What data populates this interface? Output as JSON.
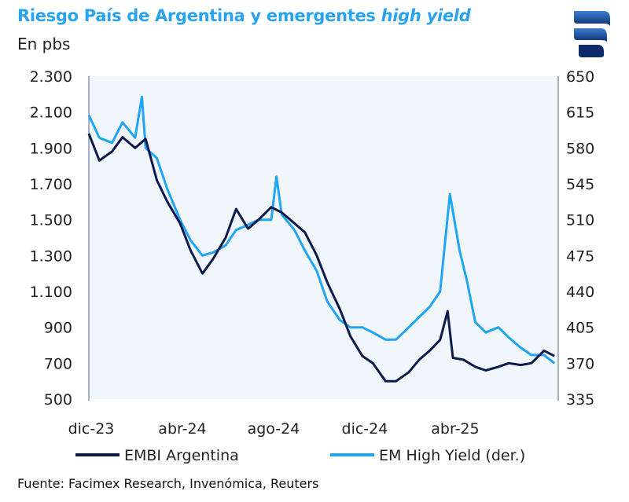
{
  "title_main": "Riesgo País de Argentina y emergentes ",
  "title_italic": "high yield",
  "subtitle": "En pbs",
  "source": "Fuente: Facimex Research, Invenómica, Reuters",
  "logo": "facimex-logo",
  "colors": {
    "embi": "#0d1a4d",
    "emhy": "#1ea6f4",
    "plot_bg": "#f0f6fc",
    "title": "#29a3ee"
  },
  "chart_data": {
    "type": "line",
    "title": "Riesgo País de Argentina y emergentes high yield",
    "ylabel": "En pbs",
    "ylim_left": [
      500,
      2300
    ],
    "ylim_right": [
      335,
      650
    ],
    "yticks_left": [
      "2.300",
      "2.100",
      "1.900",
      "1.700",
      "1.500",
      "1.300",
      "1.100",
      "900",
      "700",
      "500"
    ],
    "yticks_left_values": [
      2300,
      2100,
      1900,
      1700,
      1500,
      1300,
      1100,
      900,
      700,
      500
    ],
    "yticks_right": [
      "650",
      "615",
      "580",
      "545",
      "510",
      "475",
      "440",
      "405",
      "370",
      "335"
    ],
    "yticks_right_values": [
      650,
      615,
      580,
      545,
      510,
      475,
      440,
      405,
      370,
      335
    ],
    "xticks": [
      "dic-23",
      "abr-24",
      "ago-24",
      "dic-24",
      "abr-25"
    ],
    "xticks_values": [
      "2023-12-01",
      "2024-04-01",
      "2024-08-01",
      "2024-12-01",
      "2025-04-01"
    ],
    "xlim": [
      "2023-12-01",
      "2025-08-20"
    ],
    "grid": false,
    "legend": "bottom",
    "series": [
      {
        "name": "EMBI Argentina",
        "axis": "left",
        "points": [
          [
            "2023-12-01",
            1980
          ],
          [
            "2023-12-15",
            1830
          ],
          [
            "2024-01-01",
            1880
          ],
          [
            "2024-01-15",
            1960
          ],
          [
            "2024-02-01",
            1900
          ],
          [
            "2024-02-15",
            1950
          ],
          [
            "2024-03-01",
            1720
          ],
          [
            "2024-03-15",
            1600
          ],
          [
            "2024-04-01",
            1480
          ],
          [
            "2024-04-15",
            1330
          ],
          [
            "2024-05-01",
            1200
          ],
          [
            "2024-05-15",
            1280
          ],
          [
            "2024-06-01",
            1400
          ],
          [
            "2024-06-15",
            1560
          ],
          [
            "2024-07-01",
            1450
          ],
          [
            "2024-07-15",
            1500
          ],
          [
            "2024-08-01",
            1570
          ],
          [
            "2024-08-15",
            1540
          ],
          [
            "2024-09-01",
            1480
          ],
          [
            "2024-09-15",
            1430
          ],
          [
            "2024-10-01",
            1300
          ],
          [
            "2024-10-15",
            1150
          ],
          [
            "2024-11-01",
            1000
          ],
          [
            "2024-11-15",
            850
          ],
          [
            "2024-12-01",
            740
          ],
          [
            "2024-12-15",
            700
          ],
          [
            "2025-01-01",
            600
          ],
          [
            "2025-01-15",
            600
          ],
          [
            "2025-02-01",
            650
          ],
          [
            "2025-02-15",
            720
          ],
          [
            "2025-03-01",
            770
          ],
          [
            "2025-03-15",
            830
          ],
          [
            "2025-03-25",
            990
          ],
          [
            "2025-04-01",
            730
          ],
          [
            "2025-04-15",
            720
          ],
          [
            "2025-05-01",
            680
          ],
          [
            "2025-05-15",
            660
          ],
          [
            "2025-06-01",
            680
          ],
          [
            "2025-06-15",
            700
          ],
          [
            "2025-07-01",
            690
          ],
          [
            "2025-07-15",
            700
          ],
          [
            "2025-08-01",
            770
          ],
          [
            "2025-08-15",
            740
          ]
        ]
      },
      {
        "name": "EM High Yield (der.)",
        "axis": "right",
        "points": [
          [
            "2023-12-01",
            612
          ],
          [
            "2023-12-15",
            590
          ],
          [
            "2024-01-01",
            585
          ],
          [
            "2024-01-15",
            605
          ],
          [
            "2024-02-01",
            590
          ],
          [
            "2024-02-10",
            630
          ],
          [
            "2024-02-15",
            580
          ],
          [
            "2024-03-01",
            570
          ],
          [
            "2024-03-15",
            540
          ],
          [
            "2024-04-01",
            510
          ],
          [
            "2024-04-15",
            490
          ],
          [
            "2024-05-01",
            475
          ],
          [
            "2024-05-15",
            478
          ],
          [
            "2024-06-01",
            485
          ],
          [
            "2024-06-15",
            500
          ],
          [
            "2024-07-01",
            505
          ],
          [
            "2024-07-15",
            510
          ],
          [
            "2024-08-01",
            510
          ],
          [
            "2024-08-08",
            552
          ],
          [
            "2024-08-15",
            515
          ],
          [
            "2024-09-01",
            500
          ],
          [
            "2024-09-15",
            480
          ],
          [
            "2024-10-01",
            460
          ],
          [
            "2024-10-15",
            430
          ],
          [
            "2024-11-01",
            412
          ],
          [
            "2024-11-15",
            405
          ],
          [
            "2024-12-01",
            405
          ],
          [
            "2024-12-15",
            400
          ],
          [
            "2025-01-01",
            393
          ],
          [
            "2025-01-15",
            393
          ],
          [
            "2025-02-01",
            405
          ],
          [
            "2025-02-15",
            415
          ],
          [
            "2025-03-01",
            425
          ],
          [
            "2025-03-15",
            440
          ],
          [
            "2025-03-28",
            535
          ],
          [
            "2025-04-10",
            480
          ],
          [
            "2025-04-20",
            450
          ],
          [
            "2025-05-01",
            410
          ],
          [
            "2025-05-15",
            400
          ],
          [
            "2025-06-01",
            405
          ],
          [
            "2025-06-15",
            395
          ],
          [
            "2025-07-01",
            385
          ],
          [
            "2025-07-15",
            378
          ],
          [
            "2025-08-01",
            378
          ],
          [
            "2025-08-15",
            370
          ]
        ]
      }
    ]
  }
}
